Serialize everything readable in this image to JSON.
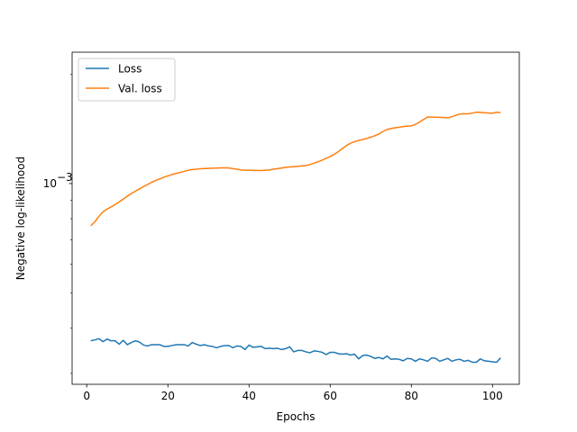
{
  "chart_data": {
    "type": "line",
    "xlabel": "Epochs",
    "ylabel": "Negative log-likelihood",
    "xlim": [
      -3.6,
      106.6
    ],
    "ylim": [
      0.00028,
      0.0023
    ],
    "yscale": "log",
    "grid": false,
    "legend_position": "top-left",
    "x_ticks": [
      0,
      20,
      40,
      60,
      80,
      100
    ],
    "x_tick_labels": [
      "0",
      "20",
      "40",
      "60",
      "80",
      "100"
    ],
    "y_ticks": [
      0.001
    ],
    "y_tick_labels": [
      "10",
      "−3"
    ],
    "series": [
      {
        "name": "Loss",
        "color": "#1f77b4",
        "points": [
          [
            1,
            0.000369
          ],
          [
            2,
            0.000371
          ],
          [
            3,
            0.000374
          ],
          [
            4,
            0.000367
          ],
          [
            5,
            0.000373
          ],
          [
            6,
            0.000369
          ],
          [
            7,
            0.000369
          ],
          [
            8,
            0.000361
          ],
          [
            9,
            0.00037
          ],
          [
            10,
            0.00036
          ],
          [
            11,
            0.000365
          ],
          [
            12,
            0.000369
          ],
          [
            13,
            0.000366
          ],
          [
            14,
            0.000359
          ],
          [
            15,
            0.000357
          ],
          [
            16,
            0.00036
          ],
          [
            17,
            0.00036
          ],
          [
            18,
            0.00036
          ],
          [
            19,
            0.000356
          ],
          [
            20,
            0.000356
          ],
          [
            21,
            0.000358
          ],
          [
            22,
            0.00036
          ],
          [
            23,
            0.00036
          ],
          [
            24,
            0.00036
          ],
          [
            25,
            0.000357
          ],
          [
            26,
            0.000365
          ],
          [
            27,
            0.000361
          ],
          [
            28,
            0.000358
          ],
          [
            29,
            0.00036
          ],
          [
            30,
            0.000357
          ],
          [
            31,
            0.000356
          ],
          [
            32,
            0.000353
          ],
          [
            33,
            0.000356
          ],
          [
            34,
            0.000358
          ],
          [
            35,
            0.000358
          ],
          [
            36,
            0.000353
          ],
          [
            37,
            0.000357
          ],
          [
            38,
            0.000356
          ],
          [
            39,
            0.000349
          ],
          [
            40,
            0.000359
          ],
          [
            41,
            0.000354
          ],
          [
            42,
            0.000355
          ],
          [
            43,
            0.000356
          ],
          [
            44,
            0.000351
          ],
          [
            45,
            0.000352
          ],
          [
            46,
            0.000351
          ],
          [
            47,
            0.000352
          ],
          [
            48,
            0.000349
          ],
          [
            49,
            0.000351
          ],
          [
            50,
            0.000355
          ],
          [
            51,
            0.000344
          ],
          [
            52,
            0.000347
          ],
          [
            53,
            0.000347
          ],
          [
            54,
            0.000344
          ],
          [
            55,
            0.000342
          ],
          [
            56,
            0.000346
          ],
          [
            57,
            0.000345
          ],
          [
            58,
            0.000343
          ],
          [
            59,
            0.000338
          ],
          [
            60,
            0.000343
          ],
          [
            61,
            0.000343
          ],
          [
            62,
            0.00034
          ],
          [
            63,
            0.000339
          ],
          [
            64,
            0.00034
          ],
          [
            65,
            0.000337
          ],
          [
            66,
            0.000339
          ],
          [
            67,
            0.000329
          ],
          [
            68,
            0.000336
          ],
          [
            69,
            0.000337
          ],
          [
            70,
            0.000334
          ],
          [
            71,
            0.00033
          ],
          [
            72,
            0.000332
          ],
          [
            73,
            0.000329
          ],
          [
            74,
            0.000335
          ],
          [
            75,
            0.000328
          ],
          [
            76,
            0.000329
          ],
          [
            77,
            0.000328
          ],
          [
            78,
            0.000325
          ],
          [
            79,
            0.00033
          ],
          [
            80,
            0.000329
          ],
          [
            81,
            0.000324
          ],
          [
            82,
            0.000329
          ],
          [
            83,
            0.000327
          ],
          [
            84,
            0.000324
          ],
          [
            85,
            0.000331
          ],
          [
            86,
            0.00033
          ],
          [
            87,
            0.000324
          ],
          [
            88,
            0.000327
          ],
          [
            89,
            0.00033
          ],
          [
            90,
            0.000324
          ],
          [
            91,
            0.000327
          ],
          [
            92,
            0.000328
          ],
          [
            93,
            0.000324
          ],
          [
            94,
            0.000326
          ],
          [
            95,
            0.000322
          ],
          [
            96,
            0.000322
          ],
          [
            97,
            0.000329
          ],
          [
            98,
            0.000325
          ],
          [
            99,
            0.000324
          ],
          [
            100,
            0.000323
          ],
          [
            101,
            0.000322
          ],
          [
            102,
            0.000331
          ]
        ]
      },
      {
        "name": "Val. loss",
        "color": "#ff7f0e",
        "points": [
          [
            1,
            0.000765
          ],
          [
            2,
            0.000785
          ],
          [
            3,
            0.000812
          ],
          [
            4,
            0.000836
          ],
          [
            5,
            0.00085
          ],
          [
            6,
            0.000862
          ],
          [
            7,
            0.000876
          ],
          [
            8,
            0.00089
          ],
          [
            9,
            0.000906
          ],
          [
            10,
            0.000923
          ],
          [
            11,
            0.000939
          ],
          [
            12,
            0.000953
          ],
          [
            13,
            0.000967
          ],
          [
            14,
            0.000981
          ],
          [
            15,
            0.000994
          ],
          [
            16,
            0.001008
          ],
          [
            17,
            0.00102
          ],
          [
            18,
            0.00103
          ],
          [
            19,
            0.001041
          ],
          [
            20,
            0.00105
          ],
          [
            21,
            0.001059
          ],
          [
            22,
            0.001066
          ],
          [
            23,
            0.001073
          ],
          [
            24,
            0.00108
          ],
          [
            25,
            0.001088
          ],
          [
            26,
            0.001093
          ],
          [
            27,
            0.001095
          ],
          [
            28,
            0.001098
          ],
          [
            29,
            0.0011
          ],
          [
            30,
            0.001101
          ],
          [
            31,
            0.001102
          ],
          [
            32,
            0.001103
          ],
          [
            33,
            0.001105
          ],
          [
            34,
            0.001105
          ],
          [
            35,
            0.001104
          ],
          [
            36,
            0.001099
          ],
          [
            37,
            0.001095
          ],
          [
            38,
            0.00109
          ],
          [
            39,
            0.001088
          ],
          [
            40,
            0.001088
          ],
          [
            41,
            0.001087
          ],
          [
            42,
            0.001087
          ],
          [
            43,
            0.001086
          ],
          [
            44,
            0.001088
          ],
          [
            45,
            0.00109
          ],
          [
            46,
            0.001095
          ],
          [
            47,
            0.001099
          ],
          [
            48,
            0.001103
          ],
          [
            49,
            0.001108
          ],
          [
            50,
            0.001111
          ],
          [
            51,
            0.001113
          ],
          [
            52,
            0.001115
          ],
          [
            53,
            0.001118
          ],
          [
            54,
            0.001121
          ],
          [
            55,
            0.001128
          ],
          [
            56,
            0.001138
          ],
          [
            57,
            0.001148
          ],
          [
            58,
            0.00116
          ],
          [
            59,
            0.001173
          ],
          [
            60,
            0.001187
          ],
          [
            61,
            0.001204
          ],
          [
            62,
            0.001224
          ],
          [
            63,
            0.001249
          ],
          [
            64,
            0.001272
          ],
          [
            65,
            0.001291
          ],
          [
            66,
            0.001304
          ],
          [
            67,
            0.001314
          ],
          [
            68,
            0.001322
          ],
          [
            69,
            0.001331
          ],
          [
            70,
            0.001342
          ],
          [
            71,
            0.001354
          ],
          [
            72,
            0.001369
          ],
          [
            73,
            0.001391
          ],
          [
            74,
            0.001409
          ],
          [
            75,
            0.001418
          ],
          [
            76,
            0.001424
          ],
          [
            77,
            0.001429
          ],
          [
            78,
            0.001435
          ],
          [
            79,
            0.001439
          ],
          [
            80,
            0.001441
          ],
          [
            81,
            0.001455
          ],
          [
            82,
            0.001477
          ],
          [
            83,
            0.001501
          ],
          [
            84,
            0.001525
          ],
          [
            85,
            0.001524
          ],
          [
            86,
            0.001523
          ],
          [
            87,
            0.001522
          ],
          [
            88,
            0.00152
          ],
          [
            89,
            0.001517
          ],
          [
            90,
            0.001528
          ],
          [
            91,
            0.001542
          ],
          [
            92,
            0.001554
          ],
          [
            93,
            0.001557
          ],
          [
            94,
            0.001556
          ],
          [
            95,
            0.001563
          ],
          [
            96,
            0.001572
          ],
          [
            97,
            0.00157
          ],
          [
            98,
            0.001567
          ],
          [
            99,
            0.001564
          ],
          [
            100,
            0.001562
          ],
          [
            101,
            0.001571
          ],
          [
            102,
            0.001569
          ]
        ]
      }
    ]
  }
}
